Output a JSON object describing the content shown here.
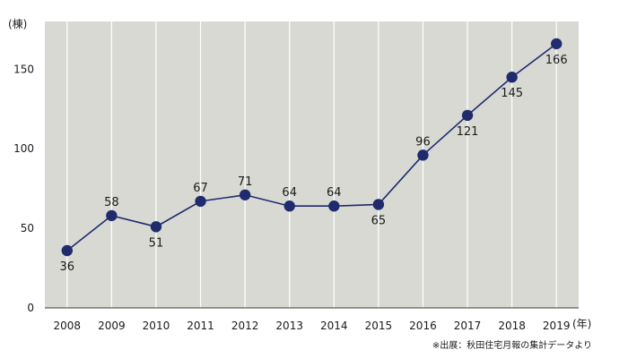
{
  "chart_data": {
    "type": "line",
    "x_unit": "(年)",
    "y_unit": "(棟)",
    "categories": [
      "2008",
      "2009",
      "2010",
      "2011",
      "2012",
      "2013",
      "2014",
      "2015",
      "2016",
      "2017",
      "2018",
      "2019"
    ],
    "values": [
      36,
      58,
      51,
      67,
      71,
      64,
      64,
      65,
      96,
      121,
      145,
      166
    ],
    "data_labels": [
      "36",
      "58",
      "51",
      "67",
      "71",
      "64",
      "64",
      "65",
      "96",
      "121",
      "145",
      "166"
    ],
    "y_ticks": [
      0,
      50,
      100,
      150
    ],
    "y_tick_labels": [
      "0",
      "50",
      "100",
      "150"
    ],
    "ylim": [
      0,
      180
    ],
    "grid": "vertical",
    "colors": {
      "line": "#1f2b6d",
      "marker": "#1f2b6d",
      "plot_background": "#d9d9d4",
      "gridline": "#ffffff"
    }
  },
  "source_note": "※出展：秋田住宅月報の集計データより"
}
